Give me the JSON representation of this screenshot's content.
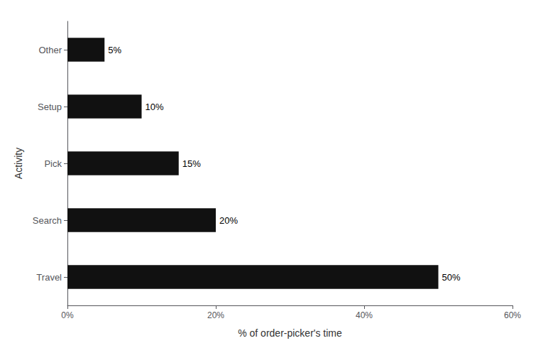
{
  "chart_data": {
    "type": "bar",
    "orientation": "horizontal",
    "categories": [
      "Travel",
      "Search",
      "Pick",
      "Setup",
      "Other"
    ],
    "values": [
      50,
      20,
      15,
      10,
      5
    ],
    "value_labels": [
      "50%",
      "20%",
      "15%",
      "10%",
      "5%"
    ],
    "data_labels": true,
    "color": "#111111",
    "xlabel": "% of order-picker's time",
    "ylabel": "Activity",
    "xlim": [
      0,
      60
    ],
    "xticks": [
      {
        "value": 0,
        "label": "0%"
      },
      {
        "value": 20,
        "label": "20%"
      },
      {
        "value": 40,
        "label": "40%"
      },
      {
        "value": 60,
        "label": "60%"
      }
    ],
    "grid": false
  }
}
